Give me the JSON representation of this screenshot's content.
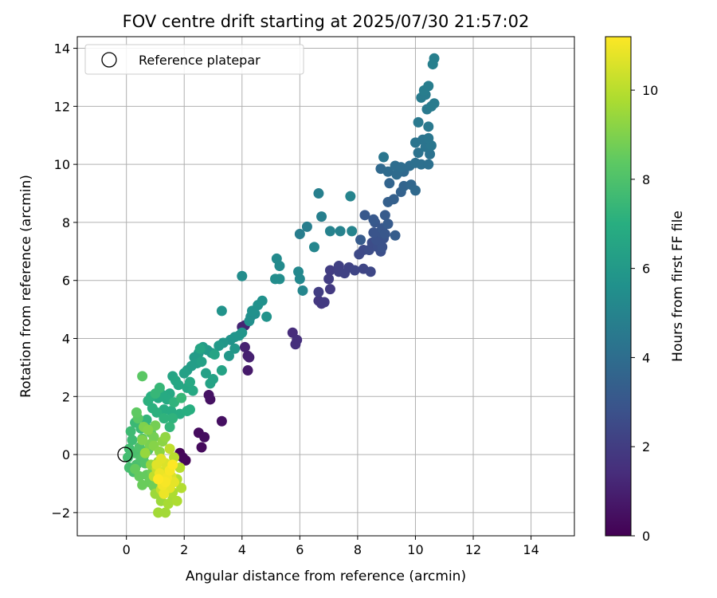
{
  "chart_data": {
    "type": "scatter",
    "title": "FOV centre drift starting at 2025/07/30 21:57:02",
    "xlabel": "Angular distance from reference (arcmin)",
    "ylabel": "Rotation from reference (arcmin)",
    "xlim": [
      -1.7,
      15.5
    ],
    "ylim": [
      -2.8,
      14.4
    ],
    "xticks": [
      0,
      2,
      4,
      6,
      8,
      10,
      12,
      14
    ],
    "yticks": [
      -2,
      0,
      2,
      4,
      6,
      8,
      10,
      12,
      14
    ],
    "xtick_labels": [
      "0",
      "2",
      "4",
      "6",
      "8",
      "10",
      "12",
      "14"
    ],
    "ytick_labels": [
      "−2",
      "0",
      "2",
      "4",
      "6",
      "8",
      "10",
      "12",
      "14"
    ],
    "grid": true,
    "legend": {
      "position": "top-left",
      "entries": [
        "Reference platepar"
      ]
    },
    "reference_point": {
      "x": 0,
      "y": 0
    },
    "colorbar": {
      "label": "Hours from first FF file",
      "range": [
        0,
        11.2
      ],
      "ticks": [
        0,
        2,
        4,
        6,
        8,
        10
      ],
      "tick_labels": [
        "0",
        "2",
        "4",
        "6",
        "8",
        "10"
      ],
      "colormap": "viridis"
    },
    "points": [
      {
        "x": 1.85,
        "y": 0.05,
        "c": 0.1
      },
      {
        "x": 2.05,
        "y": -0.2,
        "c": 0.15
      },
      {
        "x": 1.95,
        "y": -0.1,
        "c": 0.2
      },
      {
        "x": 2.6,
        "y": 0.25,
        "c": 0.3
      },
      {
        "x": 2.5,
        "y": 0.75,
        "c": 0.35
      },
      {
        "x": 2.7,
        "y": 0.6,
        "c": 0.4
      },
      {
        "x": 3.3,
        "y": 1.15,
        "c": 0.45
      },
      {
        "x": 2.9,
        "y": 1.9,
        "c": 0.5
      },
      {
        "x": 2.85,
        "y": 2.05,
        "c": 0.55
      },
      {
        "x": 4.2,
        "y": 2.9,
        "c": 0.8
      },
      {
        "x": 4.2,
        "y": 3.4,
        "c": 0.9
      },
      {
        "x": 4.1,
        "y": 3.7,
        "c": 1.0
      },
      {
        "x": 4.25,
        "y": 3.35,
        "c": 1.0
      },
      {
        "x": 4.1,
        "y": 4.45,
        "c": 1.1
      },
      {
        "x": 4.0,
        "y": 4.4,
        "c": 1.1
      },
      {
        "x": 5.75,
        "y": 4.2,
        "c": 1.4
      },
      {
        "x": 5.9,
        "y": 3.95,
        "c": 1.5
      },
      {
        "x": 5.85,
        "y": 3.8,
        "c": 1.5
      },
      {
        "x": 6.65,
        "y": 5.3,
        "c": 1.8
      },
      {
        "x": 6.75,
        "y": 5.2,
        "c": 1.8
      },
      {
        "x": 6.85,
        "y": 5.25,
        "c": 1.9
      },
      {
        "x": 7.05,
        "y": 5.7,
        "c": 1.9
      },
      {
        "x": 6.65,
        "y": 5.6,
        "c": 2.0
      },
      {
        "x": 7.0,
        "y": 6.05,
        "c": 2.0
      },
      {
        "x": 7.05,
        "y": 6.35,
        "c": 2.0
      },
      {
        "x": 7.35,
        "y": 6.5,
        "c": 2.1
      },
      {
        "x": 7.35,
        "y": 6.3,
        "c": 2.1
      },
      {
        "x": 7.55,
        "y": 6.25,
        "c": 2.2
      },
      {
        "x": 7.7,
        "y": 6.45,
        "c": 2.2
      },
      {
        "x": 7.9,
        "y": 6.35,
        "c": 2.3
      },
      {
        "x": 8.2,
        "y": 6.4,
        "c": 2.3
      },
      {
        "x": 8.45,
        "y": 6.3,
        "c": 2.4
      },
      {
        "x": 8.05,
        "y": 6.9,
        "c": 2.5
      },
      {
        "x": 8.2,
        "y": 7.05,
        "c": 2.5
      },
      {
        "x": 8.4,
        "y": 7.05,
        "c": 2.6
      },
      {
        "x": 8.5,
        "y": 7.3,
        "c": 2.6
      },
      {
        "x": 8.7,
        "y": 7.15,
        "c": 2.7
      },
      {
        "x": 8.8,
        "y": 7.0,
        "c": 2.7
      },
      {
        "x": 8.85,
        "y": 7.15,
        "c": 2.8
      },
      {
        "x": 8.9,
        "y": 7.45,
        "c": 2.8
      },
      {
        "x": 8.65,
        "y": 7.4,
        "c": 2.8
      },
      {
        "x": 8.75,
        "y": 7.65,
        "c": 2.9
      },
      {
        "x": 8.55,
        "y": 7.65,
        "c": 2.9
      },
      {
        "x": 8.6,
        "y": 8.0,
        "c": 3.0
      },
      {
        "x": 8.85,
        "y": 7.8,
        "c": 3.0
      },
      {
        "x": 8.95,
        "y": 7.6,
        "c": 3.0
      },
      {
        "x": 8.25,
        "y": 8.25,
        "c": 3.1
      },
      {
        "x": 8.55,
        "y": 8.1,
        "c": 3.1
      },
      {
        "x": 9.05,
        "y": 7.95,
        "c": 3.2
      },
      {
        "x": 8.95,
        "y": 8.25,
        "c": 3.2
      },
      {
        "x": 8.1,
        "y": 7.4,
        "c": 3.2
      },
      {
        "x": 9.3,
        "y": 7.55,
        "c": 3.3
      },
      {
        "x": 9.05,
        "y": 8.7,
        "c": 3.4
      },
      {
        "x": 9.25,
        "y": 8.8,
        "c": 3.4
      },
      {
        "x": 9.5,
        "y": 9.05,
        "c": 3.5
      },
      {
        "x": 9.1,
        "y": 9.35,
        "c": 3.6
      },
      {
        "x": 9.6,
        "y": 9.25,
        "c": 3.6
      },
      {
        "x": 9.85,
        "y": 9.3,
        "c": 3.7
      },
      {
        "x": 9.6,
        "y": 9.75,
        "c": 3.8
      },
      {
        "x": 10.0,
        "y": 9.1,
        "c": 3.8
      },
      {
        "x": 8.8,
        "y": 9.85,
        "c": 3.8
      },
      {
        "x": 9.05,
        "y": 9.75,
        "c": 3.9
      },
      {
        "x": 9.35,
        "y": 9.65,
        "c": 3.9
      },
      {
        "x": 9.3,
        "y": 9.95,
        "c": 4.0
      },
      {
        "x": 9.5,
        "y": 9.9,
        "c": 4.0
      },
      {
        "x": 9.8,
        "y": 9.95,
        "c": 4.0
      },
      {
        "x": 10.0,
        "y": 10.05,
        "c": 4.1
      },
      {
        "x": 10.2,
        "y": 10.0,
        "c": 4.1
      },
      {
        "x": 10.45,
        "y": 10.0,
        "c": 4.1
      },
      {
        "x": 10.5,
        "y": 10.35,
        "c": 4.2
      },
      {
        "x": 10.1,
        "y": 10.4,
        "c": 4.2
      },
      {
        "x": 10.35,
        "y": 10.6,
        "c": 4.3
      },
      {
        "x": 10.0,
        "y": 10.75,
        "c": 4.3
      },
      {
        "x": 10.25,
        "y": 10.85,
        "c": 4.3
      },
      {
        "x": 10.55,
        "y": 10.65,
        "c": 4.4
      },
      {
        "x": 10.45,
        "y": 10.9,
        "c": 4.4
      },
      {
        "x": 10.1,
        "y": 11.45,
        "c": 4.5
      },
      {
        "x": 10.45,
        "y": 11.3,
        "c": 4.5
      },
      {
        "x": 10.55,
        "y": 12.0,
        "c": 4.6
      },
      {
        "x": 10.65,
        "y": 12.1,
        "c": 4.6
      },
      {
        "x": 10.2,
        "y": 12.3,
        "c": 4.6
      },
      {
        "x": 10.3,
        "y": 12.55,
        "c": 4.7
      },
      {
        "x": 10.45,
        "y": 12.7,
        "c": 4.7
      },
      {
        "x": 10.6,
        "y": 13.45,
        "c": 4.8
      },
      {
        "x": 10.65,
        "y": 13.65,
        "c": 4.8
      },
      {
        "x": 8.9,
        "y": 10.25,
        "c": 4.4
      },
      {
        "x": 10.4,
        "y": 11.9,
        "c": 4.5
      },
      {
        "x": 10.35,
        "y": 12.4,
        "c": 4.6
      },
      {
        "x": 6.0,
        "y": 7.6,
        "c": 4.7
      },
      {
        "x": 6.25,
        "y": 7.85,
        "c": 4.7
      },
      {
        "x": 6.65,
        "y": 9.0,
        "c": 4.8
      },
      {
        "x": 6.75,
        "y": 8.2,
        "c": 4.8
      },
      {
        "x": 7.05,
        "y": 7.7,
        "c": 4.9
      },
      {
        "x": 7.4,
        "y": 7.7,
        "c": 4.9
      },
      {
        "x": 7.8,
        "y": 7.7,
        "c": 5.0
      },
      {
        "x": 7.75,
        "y": 8.9,
        "c": 5.0
      },
      {
        "x": 6.5,
        "y": 7.15,
        "c": 5.1
      },
      {
        "x": 6.1,
        "y": 5.65,
        "c": 5.1
      },
      {
        "x": 5.95,
        "y": 6.3,
        "c": 5.2
      },
      {
        "x": 6.0,
        "y": 6.05,
        "c": 5.2
      },
      {
        "x": 5.3,
        "y": 6.5,
        "c": 5.3
      },
      {
        "x": 5.2,
        "y": 6.75,
        "c": 5.3
      },
      {
        "x": 5.15,
        "y": 6.05,
        "c": 5.4
      },
      {
        "x": 5.3,
        "y": 6.05,
        "c": 5.4
      },
      {
        "x": 4.0,
        "y": 6.15,
        "c": 5.4
      },
      {
        "x": 4.3,
        "y": 4.75,
        "c": 5.5
      },
      {
        "x": 4.45,
        "y": 4.85,
        "c": 5.5
      },
      {
        "x": 4.25,
        "y": 4.6,
        "c": 5.5
      },
      {
        "x": 4.35,
        "y": 4.95,
        "c": 5.6
      },
      {
        "x": 4.55,
        "y": 5.15,
        "c": 5.6
      },
      {
        "x": 4.7,
        "y": 5.3,
        "c": 5.6
      },
      {
        "x": 4.85,
        "y": 4.75,
        "c": 5.7
      },
      {
        "x": 3.3,
        "y": 4.95,
        "c": 5.7
      },
      {
        "x": 3.6,
        "y": 3.95,
        "c": 5.7
      },
      {
        "x": 3.75,
        "y": 4.05,
        "c": 5.8
      },
      {
        "x": 3.9,
        "y": 4.1,
        "c": 5.8
      },
      {
        "x": 4.0,
        "y": 4.2,
        "c": 5.8
      },
      {
        "x": 3.55,
        "y": 3.4,
        "c": 5.9
      },
      {
        "x": 3.75,
        "y": 3.65,
        "c": 5.9
      },
      {
        "x": 3.35,
        "y": 3.85,
        "c": 5.9
      },
      {
        "x": 3.2,
        "y": 3.75,
        "c": 6.0
      },
      {
        "x": 2.95,
        "y": 3.5,
        "c": 6.0
      },
      {
        "x": 2.8,
        "y": 3.6,
        "c": 6.0
      },
      {
        "x": 2.65,
        "y": 3.7,
        "c": 6.1
      },
      {
        "x": 2.5,
        "y": 3.5,
        "c": 6.1
      },
      {
        "x": 2.35,
        "y": 3.35,
        "c": 6.1
      },
      {
        "x": 2.45,
        "y": 3.15,
        "c": 6.2
      },
      {
        "x": 2.25,
        "y": 3.05,
        "c": 6.2
      },
      {
        "x": 2.1,
        "y": 2.9,
        "c": 6.2
      },
      {
        "x": 2.0,
        "y": 2.8,
        "c": 6.3
      },
      {
        "x": 2.6,
        "y": 3.2,
        "c": 6.3
      },
      {
        "x": 2.75,
        "y": 2.8,
        "c": 6.3
      },
      {
        "x": 3.0,
        "y": 2.6,
        "c": 6.4
      },
      {
        "x": 3.3,
        "y": 2.9,
        "c": 6.4
      },
      {
        "x": 2.9,
        "y": 2.45,
        "c": 6.4
      },
      {
        "x": 2.55,
        "y": 3.65,
        "c": 6.5
      },
      {
        "x": 3.05,
        "y": 3.45,
        "c": 6.5
      },
      {
        "x": 1.6,
        "y": 2.7,
        "c": 6.5
      },
      {
        "x": 1.7,
        "y": 2.55,
        "c": 6.6
      },
      {
        "x": 1.8,
        "y": 2.4,
        "c": 6.6
      },
      {
        "x": 2.1,
        "y": 2.3,
        "c": 6.6
      },
      {
        "x": 2.3,
        "y": 2.2,
        "c": 6.7
      },
      {
        "x": 2.2,
        "y": 2.5,
        "c": 6.7
      },
      {
        "x": 1.5,
        "y": 2.1,
        "c": 6.7
      },
      {
        "x": 1.4,
        "y": 1.9,
        "c": 6.8
      },
      {
        "x": 1.25,
        "y": 2.05,
        "c": 6.8
      },
      {
        "x": 1.1,
        "y": 1.95,
        "c": 6.8
      },
      {
        "x": 1.3,
        "y": 1.55,
        "c": 6.9
      },
      {
        "x": 1.55,
        "y": 1.5,
        "c": 6.9
      },
      {
        "x": 1.85,
        "y": 1.4,
        "c": 6.9
      },
      {
        "x": 2.1,
        "y": 1.5,
        "c": 7.0
      },
      {
        "x": 2.2,
        "y": 1.55,
        "c": 7.0
      },
      {
        "x": 0.85,
        "y": 2.0,
        "c": 7.0
      },
      {
        "x": 0.9,
        "y": 1.6,
        "c": 7.1
      },
      {
        "x": 0.75,
        "y": 1.85,
        "c": 7.1
      },
      {
        "x": 1.05,
        "y": 1.45,
        "c": 7.1
      },
      {
        "x": 1.3,
        "y": 1.25,
        "c": 7.2
      },
      {
        "x": 1.6,
        "y": 1.25,
        "c": 7.2
      },
      {
        "x": 1.65,
        "y": 1.8,
        "c": 7.2
      },
      {
        "x": 1.5,
        "y": 0.95,
        "c": 7.3
      },
      {
        "x": 0.7,
        "y": 1.2,
        "c": 7.3
      },
      {
        "x": 0.65,
        "y": 1.0,
        "c": 7.3
      },
      {
        "x": 1.15,
        "y": 2.3,
        "c": 7.4
      },
      {
        "x": 1.0,
        "y": 2.1,
        "c": 7.4
      },
      {
        "x": 1.9,
        "y": 1.95,
        "c": 7.4
      },
      {
        "x": 0.5,
        "y": 0.9,
        "c": 7.5
      },
      {
        "x": 0.3,
        "y": 1.1,
        "c": 7.5
      },
      {
        "x": 0.15,
        "y": 0.8,
        "c": 7.6
      },
      {
        "x": 0.2,
        "y": 0.5,
        "c": 7.6
      },
      {
        "x": 0.1,
        "y": 0.2,
        "c": 7.7
      },
      {
        "x": 0.05,
        "y": -0.1,
        "c": 7.7
      },
      {
        "x": 0.1,
        "y": -0.45,
        "c": 7.8
      },
      {
        "x": 0.25,
        "y": -0.6,
        "c": 7.8
      },
      {
        "x": 0.35,
        "y": -0.35,
        "c": 7.9
      },
      {
        "x": 0.3,
        "y": 0.05,
        "c": 7.9
      },
      {
        "x": 0.45,
        "y": 0.25,
        "c": 8.0
      },
      {
        "x": 0.5,
        "y": -0.15,
        "c": 8.0
      },
      {
        "x": 0.65,
        "y": -0.3,
        "c": 8.1
      },
      {
        "x": 0.6,
        "y": -0.05,
        "c": 8.1
      },
      {
        "x": 0.75,
        "y": 0.15,
        "c": 8.2
      },
      {
        "x": 0.55,
        "y": 0.55,
        "c": 8.2
      },
      {
        "x": 0.4,
        "y": 1.25,
        "c": 8.3
      },
      {
        "x": 0.55,
        "y": 2.7,
        "c": 8.3
      },
      {
        "x": 0.35,
        "y": 1.45,
        "c": 8.4
      },
      {
        "x": 0.85,
        "y": 0.75,
        "c": 8.4
      },
      {
        "x": 0.3,
        "y": -0.5,
        "c": 8.5
      },
      {
        "x": 0.45,
        "y": -0.75,
        "c": 8.5
      },
      {
        "x": 0.7,
        "y": -0.7,
        "c": 8.5
      },
      {
        "x": 0.8,
        "y": -0.95,
        "c": 8.6
      },
      {
        "x": 0.55,
        "y": -1.05,
        "c": 8.6
      },
      {
        "x": 0.95,
        "y": -1.1,
        "c": 8.7
      },
      {
        "x": 0.9,
        "y": -0.6,
        "c": 8.7
      },
      {
        "x": 1.0,
        "y": 1.0,
        "c": 8.8
      },
      {
        "x": 0.95,
        "y": 0.6,
        "c": 8.8
      },
      {
        "x": 0.8,
        "y": 0.35,
        "c": 8.9
      },
      {
        "x": 0.6,
        "y": 0.95,
        "c": 9.0
      },
      {
        "x": 0.55,
        "y": 0.5,
        "c": 9.0
      },
      {
        "x": 0.75,
        "y": 0.85,
        "c": 9.1
      },
      {
        "x": 0.95,
        "y": 0.3,
        "c": 9.1
      },
      {
        "x": 1.15,
        "y": 0.1,
        "c": 9.2
      },
      {
        "x": 1.25,
        "y": 0.45,
        "c": 9.2
      },
      {
        "x": 1.35,
        "y": 0.6,
        "c": 9.3
      },
      {
        "x": 1.1,
        "y": -0.25,
        "c": 9.3
      },
      {
        "x": 0.85,
        "y": -0.35,
        "c": 9.4
      },
      {
        "x": 0.65,
        "y": 0.05,
        "c": 9.4
      },
      {
        "x": 1.0,
        "y": -1.35,
        "c": 9.5
      },
      {
        "x": 1.2,
        "y": -1.6,
        "c": 9.5
      },
      {
        "x": 1.1,
        "y": -2.0,
        "c": 9.6
      },
      {
        "x": 1.35,
        "y": -2.0,
        "c": 9.6
      },
      {
        "x": 1.45,
        "y": -1.7,
        "c": 9.7
      },
      {
        "x": 1.6,
        "y": -1.55,
        "c": 9.7
      },
      {
        "x": 1.6,
        "y": -1.3,
        "c": 9.8
      },
      {
        "x": 1.75,
        "y": -1.6,
        "c": 9.8
      },
      {
        "x": 1.9,
        "y": -1.15,
        "c": 9.9
      },
      {
        "x": 1.75,
        "y": -0.85,
        "c": 9.9
      },
      {
        "x": 1.85,
        "y": -0.45,
        "c": 10.0
      },
      {
        "x": 1.65,
        "y": -0.1,
        "c": 10.0
      },
      {
        "x": 1.5,
        "y": 0.2,
        "c": 10.1
      },
      {
        "x": 0.95,
        "y": -0.75,
        "c": 10.1
      },
      {
        "x": 1.05,
        "y": -0.5,
        "c": 10.2
      },
      {
        "x": 1.2,
        "y": -1.2,
        "c": 10.2
      },
      {
        "x": 1.4,
        "y": -1.0,
        "c": 10.3
      },
      {
        "x": 1.2,
        "y": -0.9,
        "c": 10.4
      },
      {
        "x": 1.3,
        "y": -0.6,
        "c": 10.5
      },
      {
        "x": 1.45,
        "y": -0.45,
        "c": 10.5
      },
      {
        "x": 1.55,
        "y": -0.75,
        "c": 10.6
      },
      {
        "x": 1.35,
        "y": -0.3,
        "c": 10.6
      },
      {
        "x": 1.2,
        "y": -0.15,
        "c": 10.7
      },
      {
        "x": 1.05,
        "y": -0.35,
        "c": 10.7
      },
      {
        "x": 1.5,
        "y": -1.15,
        "c": 10.8
      },
      {
        "x": 1.65,
        "y": -0.95,
        "c": 10.8
      },
      {
        "x": 1.3,
        "y": -1.35,
        "c": 10.9
      },
      {
        "x": 1.15,
        "y": -0.65,
        "c": 10.9
      },
      {
        "x": 1.4,
        "y": -0.8,
        "c": 11.0
      },
      {
        "x": 1.25,
        "y": -1.05,
        "c": 11.0
      },
      {
        "x": 1.5,
        "y": -0.55,
        "c": 11.1
      },
      {
        "x": 1.35,
        "y": -0.95,
        "c": 11.1
      },
      {
        "x": 1.6,
        "y": -0.35,
        "c": 11.2
      },
      {
        "x": 1.1,
        "y": -0.85,
        "c": 11.2
      }
    ]
  }
}
